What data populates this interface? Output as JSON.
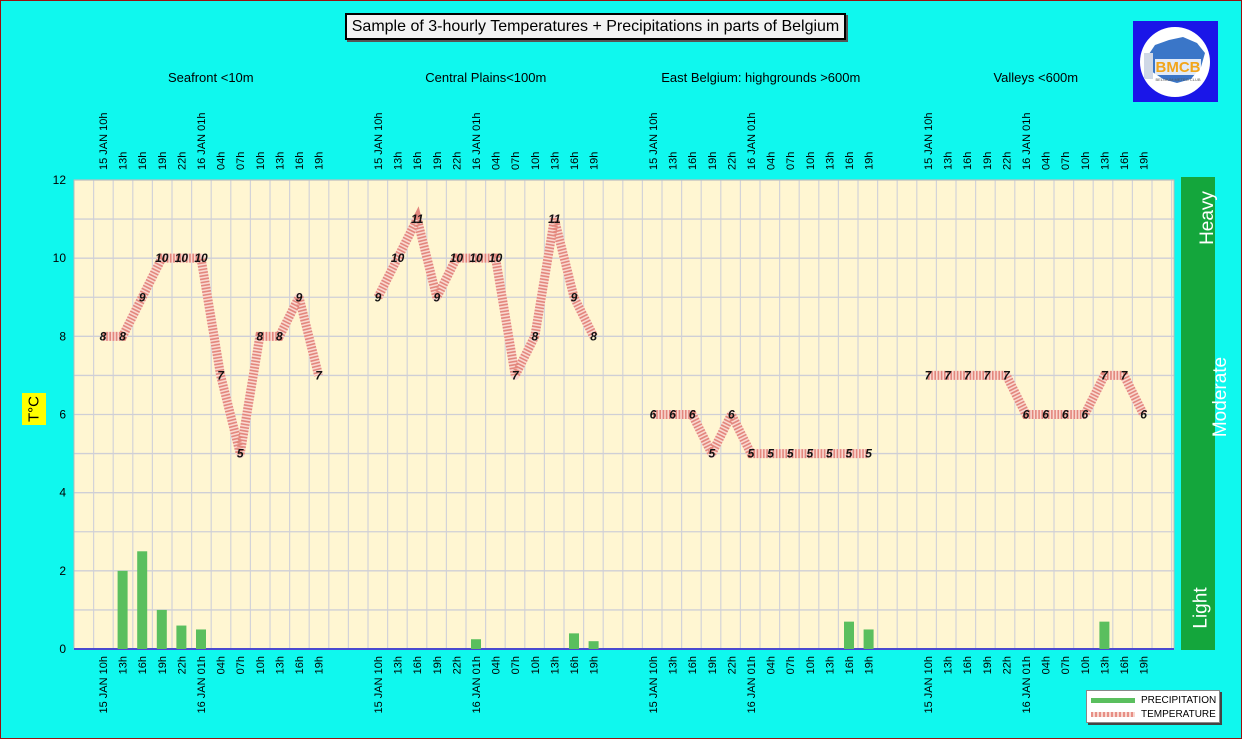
{
  "title": "Sample of 3-hourly Temperatures + Precipitations in parts of Belgium",
  "logo_text": "BMCB",
  "y_axis_label": "T°C",
  "intensity_scale": {
    "labels": [
      "Light",
      "Moderate",
      "Heavy"
    ],
    "color": "#14a63c"
  },
  "legend": {
    "precipitation": "PRECIPITATION",
    "temperature": "TEMPERATURE"
  },
  "colors": {
    "background": "#0ff8ee",
    "plot_bg": "#fff6d2",
    "precipitation": "#5abf5e",
    "temperature": "#e9a49c"
  },
  "chart_data": {
    "type": "bar",
    "ylim": [
      0,
      12
    ],
    "y_ticks": [
      0,
      2,
      4,
      6,
      8,
      10,
      12
    ],
    "grid": true,
    "legend_position": "bottom-right",
    "panels": [
      {
        "region": "Seafront <10m",
        "times": [
          "15 JAN 10h",
          "13h",
          "16h",
          "19h",
          "22h",
          "16 JAN 01h",
          "04h",
          "07h",
          "10h",
          "13h",
          "16h",
          "19h"
        ],
        "temperature": [
          8,
          8,
          9,
          10,
          10,
          10,
          7,
          5,
          8,
          8,
          9,
          7
        ],
        "precipitation": [
          0,
          2.0,
          2.5,
          1.0,
          0.6,
          0.5,
          0,
          0,
          0,
          0,
          0,
          0
        ]
      },
      {
        "region": "Central Plains<100m",
        "times": [
          "15 JAN 10h",
          "13h",
          "16h",
          "19h",
          "22h",
          "16 JAN 01h",
          "04h",
          "07h",
          "10h",
          "13h",
          "16h",
          "19h"
        ],
        "temperature": [
          9,
          10,
          11,
          9,
          10,
          10,
          10,
          7,
          8,
          11,
          9,
          8
        ],
        "precipitation": [
          0,
          0,
          0,
          0,
          0,
          0.25,
          0,
          0,
          0,
          0,
          0.4,
          0.2
        ]
      },
      {
        "region": "East Belgium:     highgrounds >600m",
        "times": [
          "15 JAN 10h",
          "13h",
          "16h",
          "19h",
          "22h",
          "16 JAN 01h",
          "04h",
          "07h",
          "10h",
          "13h",
          "16h",
          "19h"
        ],
        "temperature": [
          6,
          6,
          6,
          5,
          6,
          5,
          5,
          5,
          5,
          5,
          5,
          5
        ],
        "precipitation": [
          0,
          0,
          0,
          0,
          0,
          0,
          0,
          0,
          0,
          0,
          0.7,
          0.5
        ]
      },
      {
        "region": "Valleys <600m",
        "times": [
          "15 JAN 10h",
          "13h",
          "16h",
          "19h",
          "22h",
          "16 JAN 01h",
          "04h",
          "07h",
          "10h",
          "13h",
          "16h",
          "19h"
        ],
        "temperature": [
          7,
          7,
          7,
          7,
          7,
          6,
          6,
          6,
          6,
          7,
          7,
          6
        ],
        "precipitation": [
          0,
          0,
          0,
          0,
          0,
          0,
          0,
          0,
          0,
          0.7,
          0,
          0
        ]
      }
    ]
  }
}
